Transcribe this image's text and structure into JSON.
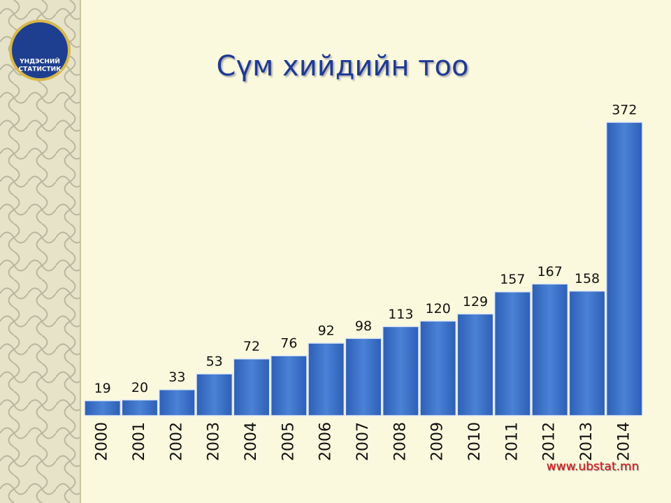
{
  "chart_data": {
    "type": "bar",
    "title": "Сүм хийдийн тоо",
    "categories": [
      "2000",
      "2001",
      "2002",
      "2003",
      "2004",
      "2005",
      "2006",
      "2007",
      "2008",
      "2009",
      "2010",
      "2011",
      "2012",
      "2013",
      "2014"
    ],
    "values": [
      19,
      20,
      33,
      53,
      72,
      76,
      92,
      98,
      113,
      120,
      129,
      157,
      167,
      158,
      372
    ],
    "color": "#3f72c8"
  },
  "logo": {
    "line1": "ҮНДЭСНИЙ",
    "line2": "СТАТИСТИК"
  },
  "website": "www.ubstat.mn"
}
